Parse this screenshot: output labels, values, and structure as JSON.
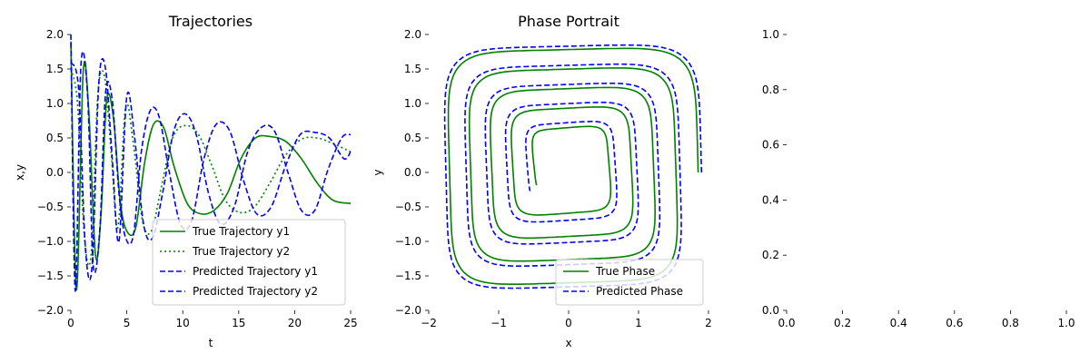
{
  "colors": {
    "true_series": "#008000",
    "predicted_series": "#0000ff",
    "axis": "#000000",
    "legend_edge": "#cccccc"
  },
  "chart_data": [
    {
      "type": "line",
      "title": "Trajectories",
      "xlabel": "t",
      "ylabel": "x,y",
      "xlim": [
        0,
        25
      ],
      "ylim": [
        -2.0,
        2.0
      ],
      "xticks": [
        0,
        5,
        10,
        15,
        20,
        25
      ],
      "yticks": [
        -2.0,
        -1.5,
        -1.0,
        -0.5,
        0.0,
        0.5,
        1.0,
        1.5,
        2.0
      ],
      "xtick_labels": [
        "0",
        "5",
        "10",
        "15",
        "20",
        "25"
      ],
      "ytick_labels": [
        "−2.0",
        "−1.5",
        "−1.0",
        "−0.5",
        "0.0",
        "0.5",
        "1.0",
        "1.5",
        "2.0"
      ],
      "grid": false,
      "legend_position": "lower-right",
      "series": [
        {
          "name": "True Trajectory y1",
          "color": "#008000",
          "style": "solid",
          "x": [
            0,
            0.5,
            1.1,
            1.6,
            2.2,
            2.7,
            3.2,
            3.8,
            4.4,
            5.0,
            5.8,
            6.6,
            7.4,
            8.3,
            9.2,
            10.4,
            11.6,
            12.8,
            14.0,
            15.2,
            16.5,
            17.8,
            19.2,
            20.6,
            22.0,
            23.4,
            25.0
          ],
          "y": [
            1.9,
            -1.7,
            1.45,
            0.9,
            -1.2,
            -0.6,
            1.05,
            0.8,
            -0.4,
            -0.85,
            -0.8,
            0.15,
            0.7,
            0.65,
            0.1,
            -0.45,
            -0.6,
            -0.55,
            -0.3,
            0.2,
            0.5,
            0.52,
            0.45,
            0.2,
            -0.15,
            -0.4,
            -0.45
          ]
        },
        {
          "name": "True Trajectory y2",
          "color": "#008000",
          "style": "dotted",
          "x": [
            0,
            0.6,
            1.2,
            1.8,
            2.4,
            3.0,
            3.6,
            4.2,
            4.9,
            5.6,
            6.4,
            7.2,
            8.1,
            9.1,
            10.2,
            11.4,
            12.6,
            13.8,
            15.1,
            16.4,
            17.8,
            19.2,
            20.6,
            22.0,
            23.4,
            25.0
          ],
          "y": [
            1.5,
            1.0,
            -0.9,
            -1.2,
            1.1,
            1.4,
            0.3,
            -0.8,
            0.95,
            0.4,
            -0.7,
            -0.85,
            -0.2,
            0.5,
            0.68,
            0.55,
            0.1,
            -0.4,
            -0.58,
            -0.5,
            -0.15,
            0.25,
            0.48,
            0.5,
            0.42,
            0.3
          ]
        },
        {
          "name": "Predicted Trajectory y1",
          "color": "#0000ff",
          "style": "dashed",
          "x": [
            0,
            0.4,
            0.9,
            1.5,
            2.0,
            2.6,
            3.1,
            3.7,
            4.3,
            4.9,
            5.6,
            6.3,
            7.1,
            7.9,
            8.8,
            9.8,
            10.8,
            11.9,
            13.0,
            14.2,
            15.4,
            16.6,
            17.9,
            19.2,
            20.5,
            21.8,
            23.1,
            24.4,
            25.0
          ],
          "y": [
            2.0,
            -1.72,
            1.55,
            1.1,
            -1.35,
            -0.8,
            1.15,
            1.05,
            -0.3,
            -0.95,
            -0.9,
            0.3,
            0.9,
            0.8,
            0.0,
            -0.75,
            -0.7,
            0.2,
            0.7,
            0.6,
            -0.1,
            -0.6,
            -0.5,
            0.1,
            0.55,
            0.58,
            0.5,
            0.2,
            0.3
          ]
        },
        {
          "name": "Predicted Trajectory y2",
          "color": "#0000ff",
          "style": "dashed",
          "x": [
            0,
            0.7,
            1.3,
            1.9,
            2.5,
            3.1,
            3.7,
            4.3,
            5.0,
            5.7,
            6.5,
            7.3,
            8.2,
            9.2,
            10.2,
            11.2,
            12.3,
            13.4,
            14.6,
            15.8,
            17.0,
            18.2,
            19.4,
            20.6,
            21.8,
            23.0,
            24.2,
            25.0
          ],
          "y": [
            1.6,
            1.2,
            -1.1,
            -1.35,
            1.3,
            1.5,
            0.2,
            -1.0,
            1.1,
            0.5,
            -0.75,
            -0.95,
            -0.3,
            0.6,
            0.85,
            0.55,
            -0.3,
            -0.75,
            -0.5,
            0.3,
            0.65,
            0.6,
            0.0,
            -0.55,
            -0.55,
            0.05,
            0.5,
            0.55
          ]
        }
      ]
    },
    {
      "type": "line",
      "title": "Phase Portrait",
      "xlabel": "x",
      "ylabel": "y",
      "xlim": [
        -2,
        2
      ],
      "ylim": [
        -2.0,
        2.0
      ],
      "xticks": [
        -2,
        -1,
        0,
        1,
        2
      ],
      "yticks": [
        -2.0,
        -1.5,
        -1.0,
        -0.5,
        0.0,
        0.5,
        1.0,
        1.5,
        2.0
      ],
      "xtick_labels": [
        "−2",
        "−1",
        "0",
        "1",
        "2"
      ],
      "ytick_labels": [
        "−2.0",
        "−1.5",
        "−1.0",
        "−0.5",
        "0.0",
        "0.5",
        "1.0",
        "1.5",
        "2.0"
      ],
      "grid": false,
      "legend_position": "lower-right",
      "series": [
        {
          "name": "True Phase",
          "color": "#008000",
          "style": "solid",
          "spiral": {
            "start_radius": 1.95,
            "end_radius": 0.45,
            "turns": 4.6,
            "start_angle_deg": 0,
            "center": [
              -0.1,
              0.3
            ],
            "squareness": 6
          }
        },
        {
          "name": "Predicted Phase",
          "color": "#0000ff",
          "style": "dashed",
          "spiral": {
            "start_radius": 2.0,
            "end_radius": 0.55,
            "turns": 4.6,
            "start_angle_deg": 0,
            "center": [
              -0.1,
              0.25
            ],
            "squareness": 6
          }
        }
      ]
    },
    {
      "type": "line",
      "title": "",
      "xlabel": "",
      "ylabel": "",
      "xlim": [
        0.0,
        1.0
      ],
      "ylim": [
        0.0,
        1.0
      ],
      "xticks": [
        0.0,
        0.2,
        0.4,
        0.6,
        0.8,
        1.0
      ],
      "yticks": [
        0.0,
        0.2,
        0.4,
        0.6,
        0.8,
        1.0
      ],
      "xtick_labels": [
        "0.0",
        "0.2",
        "0.4",
        "0.6",
        "0.8",
        "1.0"
      ],
      "ytick_labels": [
        "0.0",
        "0.2",
        "0.4",
        "0.6",
        "0.8",
        "1.0"
      ],
      "grid": false,
      "series": []
    }
  ]
}
